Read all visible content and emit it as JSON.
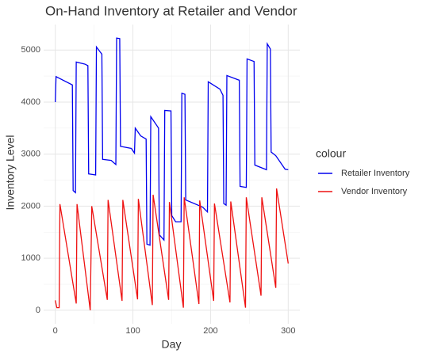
{
  "chart_data": {
    "type": "line",
    "title": "On-Hand Inventory at Retailer and Vendor",
    "x_label": "Day",
    "y_label": "Inventory Level",
    "legend_title": "colour",
    "legend": "right",
    "grid": true,
    "xlim": [
      -15,
      315
    ],
    "xticks": [
      0,
      100,
      200,
      300
    ],
    "xminor": [
      50,
      150,
      250
    ],
    "ylim": [
      -260,
      5490
    ],
    "yticks": [
      0,
      1000,
      2000,
      3000,
      4000,
      5000
    ],
    "yminor": [
      500,
      1500,
      2500,
      3500,
      4500
    ],
    "series": [
      {
        "name": "Retailer Inventory",
        "color": "#0000ee",
        "x": [
          0,
          1,
          22,
          23,
          26,
          27,
          38,
          42,
          43,
          52,
          53,
          60,
          61,
          72,
          78,
          79,
          83,
          84,
          98,
          102,
          103,
          110,
          117,
          118,
          122,
          123,
          133,
          134,
          140,
          141,
          149,
          150,
          155,
          162,
          163,
          167,
          168,
          190,
          196,
          197,
          212,
          216,
          217,
          220,
          221,
          237,
          238,
          246,
          247,
          256,
          257,
          272,
          273,
          277,
          278,
          284,
          296,
          300
        ],
        "values": [
          4000,
          4490,
          4330,
          2300,
          2260,
          4770,
          4730,
          4700,
          2620,
          2600,
          5060,
          4920,
          2900,
          2880,
          2800,
          5230,
          5220,
          3150,
          3110,
          3020,
          3500,
          3350,
          3290,
          1270,
          1250,
          3720,
          3500,
          1450,
          1350,
          3840,
          3830,
          1820,
          1700,
          1700,
          4170,
          4150,
          2120,
          1980,
          1890,
          4390,
          4250,
          4130,
          2050,
          2020,
          4510,
          4420,
          2380,
          2360,
          4830,
          4780,
          2790,
          2700,
          5120,
          5020,
          3040,
          2970,
          2710,
          2700
        ]
      },
      {
        "name": "Vendor Inventory",
        "color": "#ee1111",
        "x": [
          0,
          2,
          5,
          6,
          27,
          28,
          45,
          47,
          67,
          68,
          86,
          87,
          106,
          107,
          125,
          126,
          146,
          147,
          165,
          166,
          185,
          186,
          204,
          205,
          225,
          226,
          245,
          246,
          265,
          266,
          284,
          285,
          300
        ],
        "values": [
          190,
          50,
          50,
          2040,
          130,
          2040,
          0,
          2000,
          200,
          2120,
          180,
          2120,
          210,
          2140,
          100,
          2220,
          200,
          2080,
          50,
          2170,
          120,
          2110,
          180,
          2050,
          150,
          2090,
          50,
          2170,
          280,
          2170,
          430,
          2340,
          900
        ]
      }
    ]
  }
}
